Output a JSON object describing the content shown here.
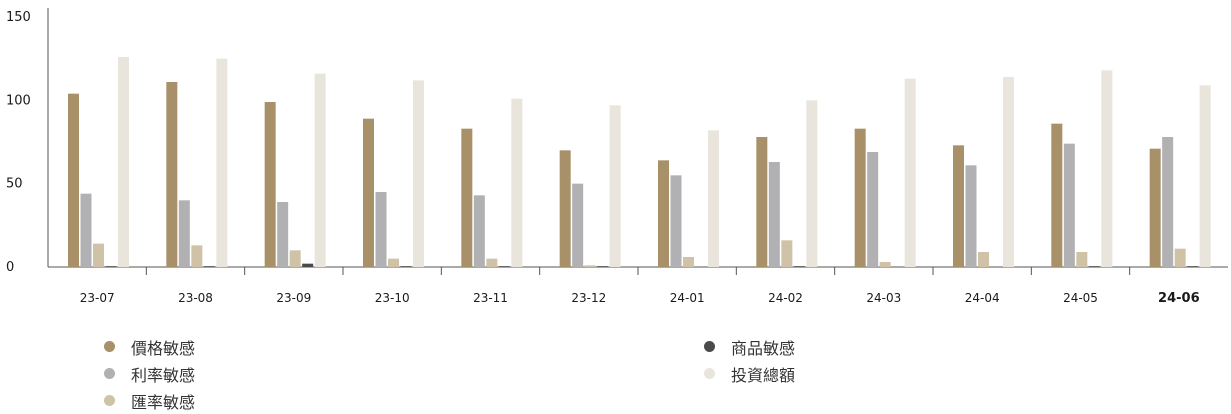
{
  "chart_data": {
    "type": "bar",
    "categories": [
      "23-07",
      "23-08",
      "23-09",
      "23-10",
      "23-11",
      "23-12",
      "24-01",
      "24-02",
      "24-03",
      "24-04",
      "24-05",
      "24-06"
    ],
    "highlight_category": "24-06",
    "ylim": [
      0,
      150
    ],
    "yticks": [
      "0",
      "50",
      "100",
      "150"
    ],
    "grid": false,
    "legend_position": "bottom",
    "series": [
      {
        "name": "價格敏感",
        "color": "#a89068",
        "values": [
          104,
          111,
          99,
          89,
          83,
          70,
          64,
          78,
          83,
          73,
          86,
          71
        ]
      },
      {
        "name": "利率敏感",
        "color": "#b1b1b3",
        "values": [
          44,
          40,
          39,
          45,
          43,
          50,
          55,
          63,
          69,
          61,
          74,
          78
        ]
      },
      {
        "name": "匯率敏感",
        "color": "#cfc2a6",
        "values": [
          14,
          13,
          10,
          5,
          5,
          1,
          6,
          16,
          3,
          9,
          9,
          11
        ]
      },
      {
        "name": "商品敏感",
        "color": "#4a4a4a",
        "values": [
          0.5,
          0.5,
          2,
          0.5,
          0.5,
          0.5,
          0,
          0.5,
          0,
          0,
          0.5,
          0.5
        ]
      },
      {
        "name": "投資總額",
        "color": "#eae5dc",
        "values": [
          126,
          125,
          116,
          112,
          101,
          97,
          82,
          100,
          113,
          114,
          118,
          109
        ]
      }
    ]
  }
}
